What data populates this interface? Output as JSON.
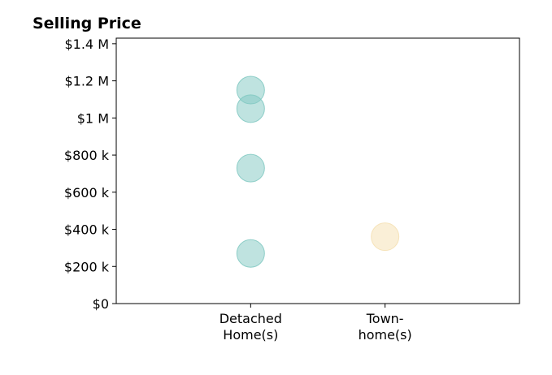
{
  "chart_data": {
    "type": "scatter",
    "title": "Selling Price",
    "xlabel": "",
    "ylabel": "",
    "categories": [
      [
        "Detached",
        "Home(s)"
      ],
      [
        "Town-",
        "home(s)"
      ]
    ],
    "ylim": [
      0,
      1430000
    ],
    "y_ticks": [
      {
        "value": 0,
        "label": "$0"
      },
      {
        "value": 200000,
        "label": "$200 k"
      },
      {
        "value": 400000,
        "label": "$400 k"
      },
      {
        "value": 600000,
        "label": "$600 k"
      },
      {
        "value": 800000,
        "label": "$800 k"
      },
      {
        "value": 1000000,
        "label": "$1 M"
      },
      {
        "value": 1200000,
        "label": "$1.2 M"
      },
      {
        "value": 1400000,
        "label": "$1.4 M"
      }
    ],
    "series": [
      {
        "category_index": 0,
        "color": "#7fc8c1",
        "values": [
          1150000,
          1050000,
          730000,
          270000
        ]
      },
      {
        "category_index": 1,
        "color": "#f5dfb0",
        "values": [
          360000
        ]
      }
    ],
    "grid": false,
    "legend": "none"
  }
}
